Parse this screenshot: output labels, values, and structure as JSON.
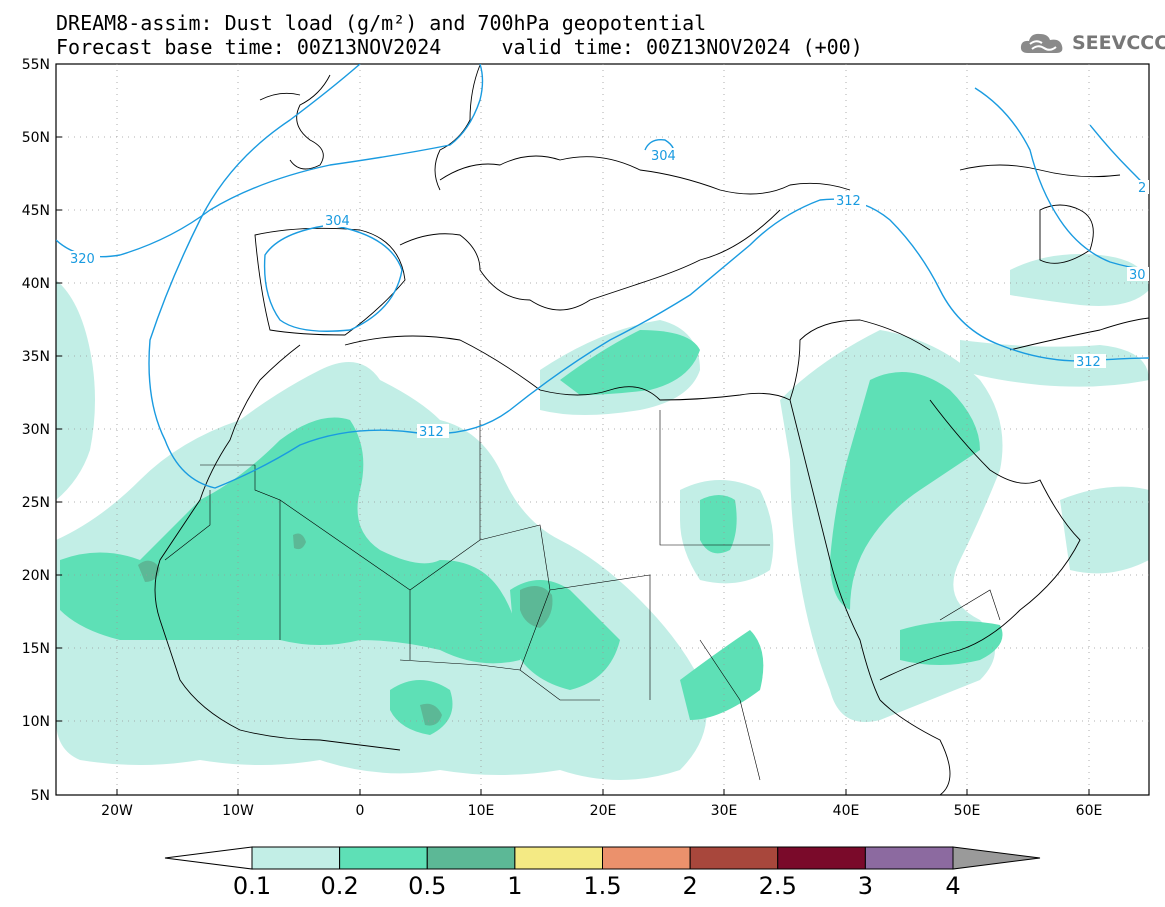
{
  "title_line1": "DREAM8-assim: Dust load (g/m²) and 700hPa geopotential",
  "title_line2": "Forecast base time: 00Z13NOV2024     valid time: 00Z13NOV2024 (+00)",
  "logo_text": "SEEVCCC",
  "map": {
    "lat_labels": [
      "55N",
      "50N",
      "45N",
      "40N",
      "35N",
      "30N",
      "25N",
      "20N",
      "15N",
      "10N",
      "5N"
    ],
    "lon_labels": [
      "20W",
      "10W",
      "0",
      "10E",
      "20E",
      "30E",
      "40E",
      "50E",
      "60E"
    ],
    "contour_labels": [
      "320",
      "304",
      "312",
      "304",
      "312",
      "312",
      "30",
      "2"
    ]
  },
  "colorbar": {
    "labels": [
      "0.1",
      "0.2",
      "0.5",
      "1",
      "1.5",
      "2",
      "2.5",
      "3",
      "4"
    ],
    "colors": [
      "#c2eee6",
      "#5ee0b6",
      "#5cb896",
      "#f4ea84",
      "#eb916c",
      "#a8473c",
      "#7a0a2a",
      "#8c6aa0"
    ],
    "under_color": "#ffffff",
    "over_color": "#9a9a9a"
  },
  "colors": {
    "dust_light": "#c2eee6",
    "dust_medium": "#5ee0b6",
    "dust_dark": "#5cb896",
    "contour": "#1a9be0",
    "coast": "#000000"
  }
}
